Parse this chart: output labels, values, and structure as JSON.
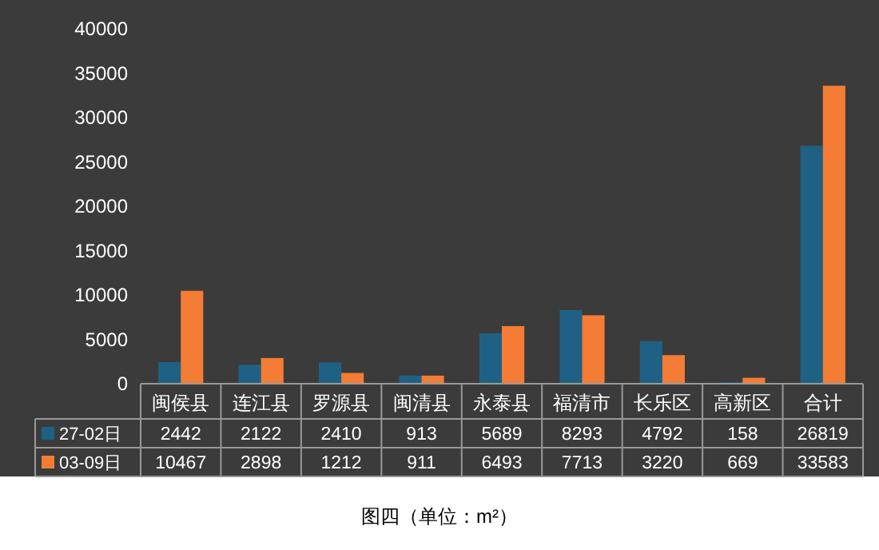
{
  "chart_data": {
    "type": "bar",
    "categories": [
      "闽侯县",
      "连江县",
      "罗源县",
      "闽清县",
      "永泰县",
      "福清市",
      "长乐区",
      "高新区",
      "合计"
    ],
    "series": [
      {
        "name": "27-02日",
        "color": "#1f6184",
        "values": [
          2442,
          2122,
          2410,
          913,
          5689,
          8293,
          4792,
          158,
          26819
        ]
      },
      {
        "name": "03-09日",
        "color": "#f47c34",
        "values": [
          10467,
          2898,
          1212,
          911,
          6493,
          7713,
          3220,
          669,
          33583
        ]
      }
    ],
    "ylim": [
      0,
      40000
    ],
    "yticks": [
      0,
      5000,
      10000,
      15000,
      20000,
      25000,
      30000,
      35000,
      40000
    ],
    "grid": false,
    "legend": "bottom",
    "data_labels": true,
    "annotations": [
      "图四（单位：m²）"
    ]
  }
}
